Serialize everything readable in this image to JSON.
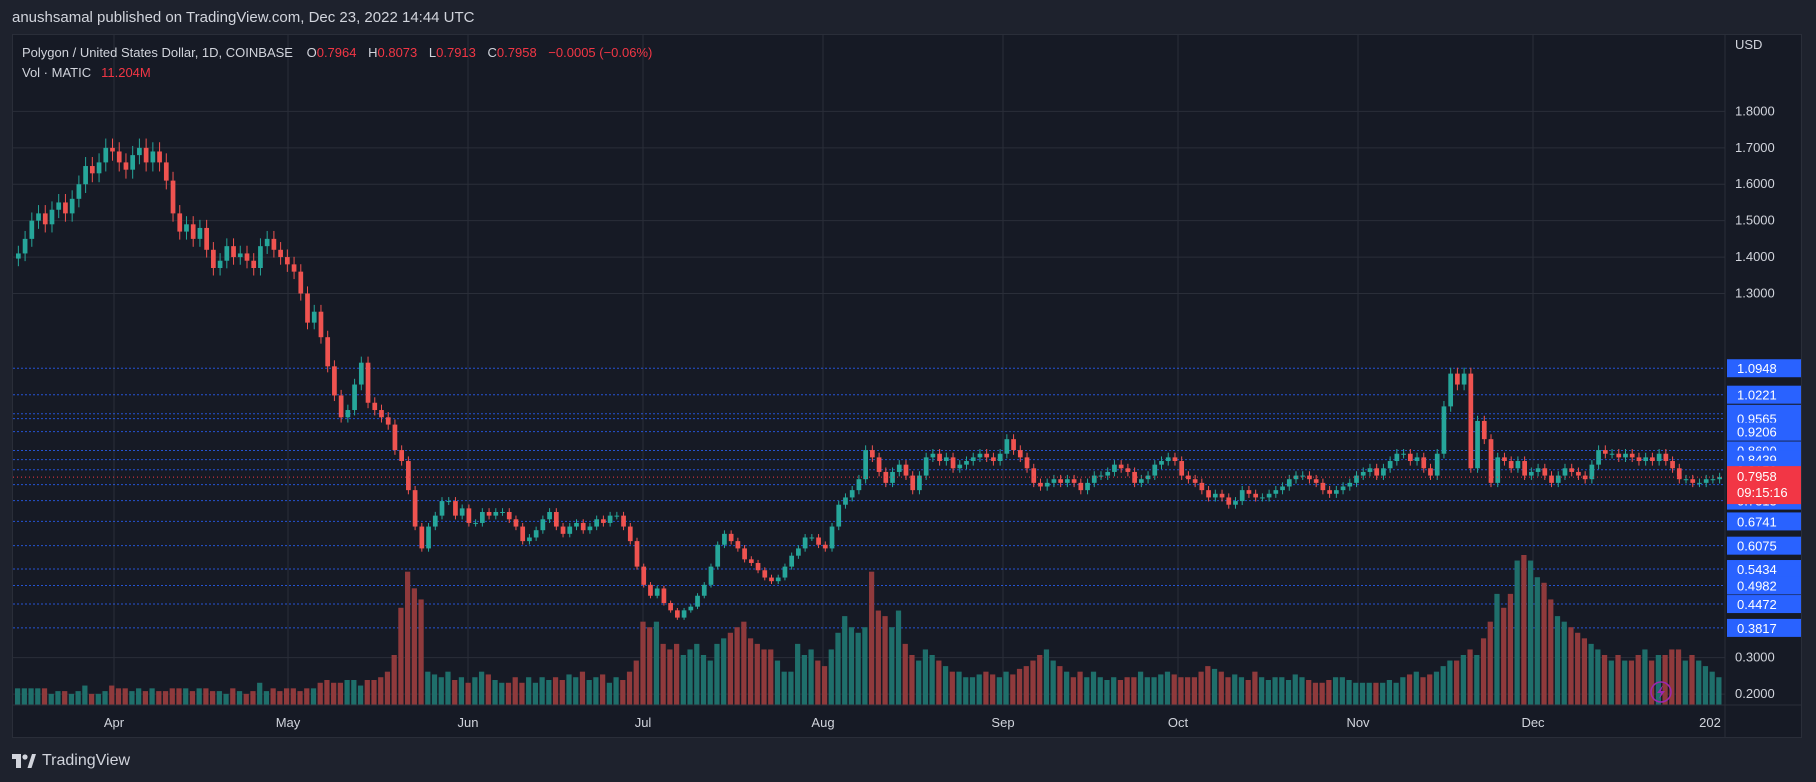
{
  "header": {
    "published": "anushsamal published on TradingView.com, Dec 23, 2022 14:44 UTC"
  },
  "legend": {
    "symbol": "Polygon / United States Dollar, 1D, COINBASE",
    "o_label": "O",
    "o_value": "0.7964",
    "h_label": "H",
    "h_value": "0.8073",
    "l_label": "L",
    "l_value": "0.7913",
    "c_label": "C",
    "c_value": "0.7958",
    "change": "−0.0005 (−0.06%)",
    "vol_label": "Vol · MATIC",
    "vol_value": "11.204M"
  },
  "footer": {
    "brand": "TradingView"
  },
  "colors": {
    "up": "#26a69a",
    "down": "#ef5350",
    "up_vol": "#1f6f6b",
    "down_vol": "#8f3a3c",
    "grid": "#2a2e39",
    "level_line": "#2962ff",
    "level_tag": "#2962ff",
    "last_price_tag": "#f23645",
    "text": "#d1d4dc",
    "background": "#161a25"
  },
  "chart_data": {
    "type": "candlestick",
    "currency": "USD",
    "y_range": [
      0.17,
      1.9
    ],
    "y_ticks": [
      "1.8000",
      "1.7000",
      "1.6000",
      "1.5000",
      "1.4000",
      "1.3000",
      "0.3000",
      "0.2000"
    ],
    "x_ticks": [
      "Apr",
      "May",
      "Jun",
      "Jul",
      "Aug",
      "Sep",
      "Oct",
      "Nov",
      "Dec",
      "202"
    ],
    "levels": [
      "1.0948",
      "1.0221",
      "0.9697",
      "0.9565",
      "0.9206",
      "0.8690",
      "0.8439",
      "0.8159",
      "0.7750",
      "0.7313",
      "0.6741",
      "0.6075",
      "0.5434",
      "0.4982",
      "0.4472",
      "0.3817"
    ],
    "last_price": "0.7958",
    "countdown": "09:15:16",
    "close_series": [
      1.41,
      1.45,
      1.5,
      1.52,
      1.49,
      1.53,
      1.55,
      1.52,
      1.56,
      1.6,
      1.65,
      1.63,
      1.66,
      1.7,
      1.69,
      1.66,
      1.64,
      1.68,
      1.7,
      1.66,
      1.69,
      1.66,
      1.61,
      1.52,
      1.47,
      1.49,
      1.45,
      1.48,
      1.42,
      1.37,
      1.39,
      1.43,
      1.4,
      1.41,
      1.39,
      1.37,
      1.43,
      1.45,
      1.42,
      1.4,
      1.38,
      1.36,
      1.3,
      1.22,
      1.25,
      1.18,
      1.1,
      1.02,
      0.96,
      0.98,
      1.05,
      1.11,
      1.0,
      0.98,
      0.96,
      0.94,
      0.87,
      0.84,
      0.76,
      0.66,
      0.6,
      0.66,
      0.69,
      0.73,
      0.73,
      0.69,
      0.71,
      0.67,
      0.67,
      0.7,
      0.69,
      0.7,
      0.7,
      0.68,
      0.66,
      0.62,
      0.63,
      0.65,
      0.68,
      0.7,
      0.66,
      0.64,
      0.66,
      0.67,
      0.65,
      0.66,
      0.68,
      0.67,
      0.69,
      0.69,
      0.66,
      0.62,
      0.55,
      0.5,
      0.47,
      0.49,
      0.45,
      0.43,
      0.41,
      0.43,
      0.44,
      0.47,
      0.5,
      0.55,
      0.61,
      0.64,
      0.62,
      0.6,
      0.57,
      0.56,
      0.54,
      0.52,
      0.51,
      0.52,
      0.55,
      0.58,
      0.6,
      0.63,
      0.63,
      0.61,
      0.6,
      0.66,
      0.72,
      0.74,
      0.76,
      0.79,
      0.87,
      0.85,
      0.81,
      0.78,
      0.81,
      0.83,
      0.8,
      0.76,
      0.8,
      0.85,
      0.86,
      0.84,
      0.85,
      0.82,
      0.83,
      0.84,
      0.85,
      0.86,
      0.85,
      0.84,
      0.86,
      0.9,
      0.87,
      0.85,
      0.82,
      0.78,
      0.77,
      0.78,
      0.79,
      0.78,
      0.79,
      0.78,
      0.76,
      0.78,
      0.8,
      0.8,
      0.81,
      0.83,
      0.82,
      0.81,
      0.78,
      0.79,
      0.8,
      0.83,
      0.84,
      0.85,
      0.84,
      0.8,
      0.79,
      0.78,
      0.76,
      0.74,
      0.75,
      0.74,
      0.72,
      0.73,
      0.76,
      0.75,
      0.74,
      0.74,
      0.75,
      0.76,
      0.77,
      0.79,
      0.8,
      0.8,
      0.79,
      0.78,
      0.76,
      0.75,
      0.76,
      0.77,
      0.78,
      0.8,
      0.81,
      0.82,
      0.8,
      0.82,
      0.84,
      0.86,
      0.86,
      0.84,
      0.85,
      0.82,
      0.8,
      0.86,
      0.99,
      1.08,
      1.05,
      1.08,
      0.82,
      0.95,
      0.9,
      0.78,
      0.85,
      0.84,
      0.82,
      0.84,
      0.8,
      0.81,
      0.82,
      0.8,
      0.78,
      0.8,
      0.82,
      0.81,
      0.8,
      0.79,
      0.83,
      0.87,
      0.86,
      0.86,
      0.85,
      0.86,
      0.85,
      0.84,
      0.85,
      0.84,
      0.86,
      0.84,
      0.82,
      0.79,
      0.79,
      0.78,
      0.78,
      0.79,
      0.79,
      0.7958
    ],
    "volume_series": [
      6,
      6,
      6,
      6,
      6,
      4,
      5,
      5,
      4,
      5,
      7,
      4,
      4,
      5,
      7,
      6,
      6,
      5,
      6,
      5,
      6,
      5,
      5,
      6,
      6,
      6,
      5,
      6,
      6,
      5,
      5,
      4,
      6,
      5,
      4,
      5,
      8,
      5,
      6,
      5,
      6,
      6,
      5,
      6,
      6,
      8,
      9,
      8,
      8,
      9,
      9,
      7,
      9,
      9,
      10,
      12,
      18,
      35,
      48,
      42,
      38,
      12,
      11,
      10,
      12,
      9,
      10,
      8,
      10,
      12,
      11,
      9,
      8,
      8,
      10,
      8,
      10,
      8,
      10,
      9,
      10,
      9,
      11,
      10,
      12,
      9,
      10,
      11,
      8,
      10,
      9,
      12,
      16,
      30,
      28,
      30,
      22,
      20,
      22,
      18,
      20,
      22,
      18,
      16,
      22,
      24,
      26,
      28,
      30,
      24,
      22,
      20,
      20,
      16,
      12,
      12,
      22,
      18,
      20,
      16,
      14,
      20,
      26,
      32,
      28,
      26,
      28,
      48,
      34,
      32,
      28,
      34,
      22,
      18,
      16,
      20,
      18,
      16,
      14,
      12,
      12,
      10,
      10,
      11,
      12,
      11,
      10,
      12,
      11,
      13,
      14,
      16,
      18,
      20,
      16,
      14,
      12,
      10,
      12,
      10,
      12,
      10,
      9,
      10,
      9,
      10,
      10,
      12,
      10,
      10,
      11,
      12,
      11,
      10,
      10,
      10,
      12,
      14,
      13,
      12,
      10,
      11,
      10,
      9,
      12,
      10,
      9,
      10,
      10,
      9,
      11,
      10,
      9,
      8,
      8,
      9,
      10,
      10,
      9,
      8,
      8,
      8,
      8,
      8,
      9,
      8,
      10,
      11,
      12,
      10,
      11,
      12,
      14,
      16,
      16,
      18,
      20,
      18,
      24,
      30,
      40,
      35,
      40,
      52,
      54,
      52,
      46,
      44,
      38,
      32,
      30,
      28,
      26,
      24,
      22,
      20,
      18,
      16,
      18,
      16,
      16,
      18,
      20,
      16,
      18,
      18,
      20,
      20,
      16,
      18,
      16,
      14,
      12,
      10,
      12,
      14,
      14,
      12,
      12,
      14,
      12,
      6
    ]
  }
}
